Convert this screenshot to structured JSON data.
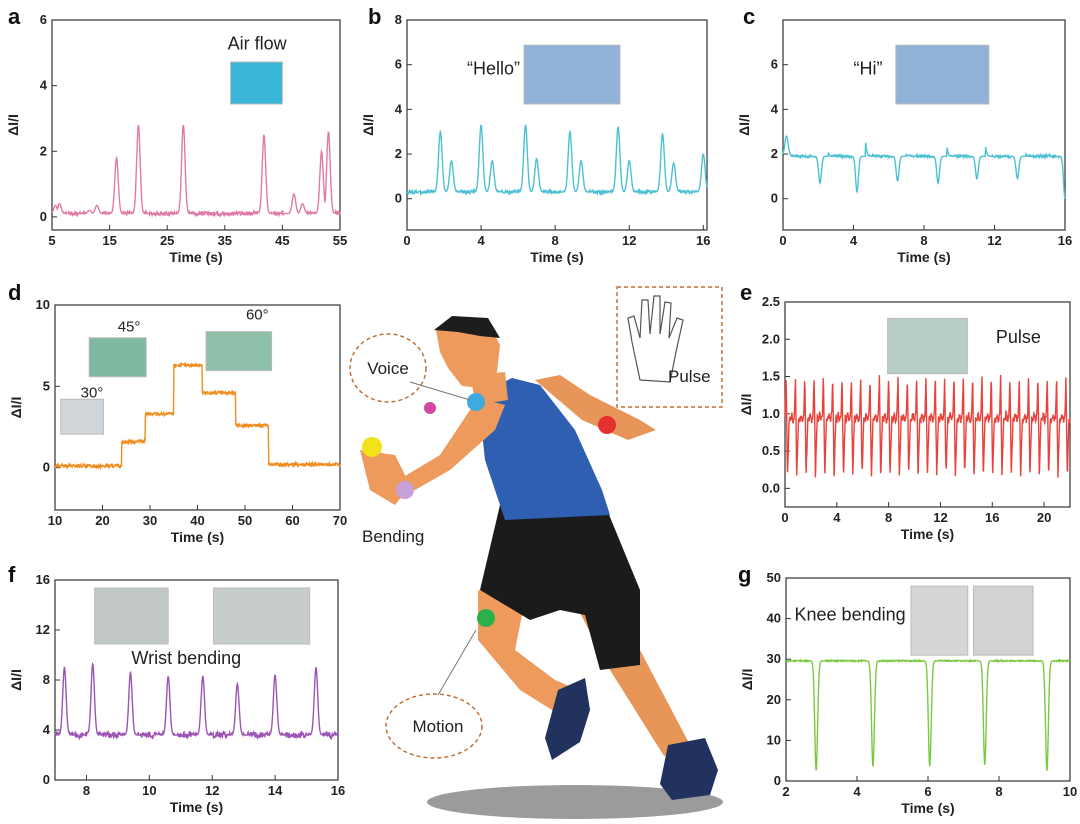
{
  "figure": {
    "center_labels": {
      "voice": "Voice",
      "pulse": "Pulse",
      "bending": "Bending",
      "motion": "Motion"
    }
  },
  "chart_data": [
    {
      "panel": "a",
      "type": "line",
      "color": "#e07aa5",
      "xlabel": "Time (s)",
      "ylabel": "ΔI/I",
      "xlim": [
        5,
        55
      ],
      "ylim": [
        -0.4,
        6
      ],
      "xticks": [
        5,
        15,
        25,
        35,
        45,
        55
      ],
      "yticks": [
        0,
        2,
        4,
        6
      ],
      "annotations": [
        "Air flow"
      ],
      "peaks": [
        [
          5.6,
          0.35
        ],
        [
          6.3,
          0.4
        ],
        [
          11.5,
          0.2
        ],
        [
          12.8,
          0.35
        ],
        [
          16.2,
          1.8
        ],
        [
          20.0,
          2.8
        ],
        [
          27.8,
          2.8
        ],
        [
          41.8,
          2.5
        ],
        [
          47.0,
          0.7
        ],
        [
          48.5,
          0.4
        ],
        [
          51.8,
          2.0
        ],
        [
          53.0,
          2.6
        ]
      ],
      "baseline": 0.1,
      "noise": 0.06
    },
    {
      "panel": "b",
      "type": "line",
      "color": "#4dc0d3",
      "xlabel": "Time (s)",
      "ylabel": "ΔI/I",
      "xlim": [
        0,
        16.2
      ],
      "ylim": [
        -1.4,
        8
      ],
      "xticks": [
        0,
        4,
        8,
        12,
        16
      ],
      "yticks": [
        0,
        2,
        4,
        6,
        8
      ],
      "annotations": [
        "“Hello”"
      ],
      "peaks": [
        [
          1.8,
          3.0
        ],
        [
          2.4,
          1.7
        ],
        [
          4.0,
          3.3
        ],
        [
          4.6,
          1.7
        ],
        [
          6.4,
          3.3
        ],
        [
          7.0,
          1.8
        ],
        [
          8.8,
          3.0
        ],
        [
          9.4,
          1.7
        ],
        [
          11.4,
          3.2
        ],
        [
          12.0,
          1.7
        ],
        [
          13.8,
          2.9
        ],
        [
          14.4,
          1.6
        ],
        [
          16.0,
          2.0
        ]
      ],
      "baseline": 0.3,
      "noise": 0.08
    },
    {
      "panel": "c",
      "type": "line",
      "color": "#4dc0d3",
      "xlabel": "Time (s)",
      "ylabel": "ΔI/I",
      "xlim": [
        0,
        16
      ],
      "ylim": [
        -1.4,
        8
      ],
      "xticks": [
        0,
        4,
        8,
        12,
        16
      ],
      "yticks": [
        0,
        2,
        4,
        6
      ],
      "annotations": [
        "“Hi”"
      ],
      "peaks": [
        [
          0.2,
          2.8
        ],
        [
          2.4,
          2.9
        ],
        [
          4.6,
          2.8
        ],
        [
          6.8,
          2.5
        ],
        [
          9.2,
          2.6
        ],
        [
          11.4,
          2.6
        ],
        [
          13.6,
          2.5
        ]
      ],
      "dips": [
        [
          2.1,
          0.7
        ],
        [
          4.2,
          0.3
        ],
        [
          6.5,
          0.8
        ],
        [
          8.8,
          0.7
        ],
        [
          11.0,
          0.9
        ],
        [
          13.3,
          0.9
        ],
        [
          16.0,
          0.0
        ]
      ],
      "baseline": 1.9,
      "noise": 0.06
    },
    {
      "panel": "d",
      "type": "line",
      "color": "#f08c1e",
      "xlabel": "Time (s)",
      "ylabel": "ΔI/I",
      "xlim": [
        10,
        70
      ],
      "ylim": [
        -2.6,
        10
      ],
      "xticks": [
        10,
        20,
        30,
        40,
        50,
        60,
        70
      ],
      "yticks": [
        0,
        5,
        10
      ],
      "annotations": [
        "30°",
        "45°",
        "60°"
      ],
      "steps": [
        [
          10,
          0.1
        ],
        [
          24,
          1.6
        ],
        [
          29,
          3.3
        ],
        [
          35,
          6.3
        ],
        [
          41,
          4.6
        ],
        [
          48,
          2.6
        ],
        [
          55,
          0.2
        ],
        [
          70,
          0.2
        ]
      ],
      "noise": 0.1
    },
    {
      "panel": "e",
      "type": "line",
      "color": "#e8423b",
      "xlabel": "Time (s)",
      "ylabel": "ΔI/I",
      "xlim": [
        0,
        22
      ],
      "ylim": [
        -0.25,
        2.5
      ],
      "xticks": [
        0,
        4,
        8,
        12,
        16,
        20
      ],
      "yticks": [
        0.0,
        0.5,
        1.0,
        1.5,
        2.0,
        2.5
      ],
      "annotations": [
        "Pulse"
      ],
      "beat_period_s": 0.72,
      "peak": 1.5,
      "trough": 0.15,
      "baseline": 0.95
    },
    {
      "panel": "f",
      "type": "line",
      "color": "#9c55b4",
      "xlabel": "Time (s)",
      "ylabel": "ΔI/I",
      "xlim": [
        7,
        16
      ],
      "ylim": [
        0,
        16
      ],
      "xticks": [
        8,
        10,
        12,
        14,
        16
      ],
      "yticks": [
        0,
        4,
        8,
        12,
        16
      ],
      "annotations": [
        "Wrist bending"
      ],
      "peaks": [
        [
          7.3,
          9.0
        ],
        [
          8.2,
          9.3
        ],
        [
          9.4,
          8.6
        ],
        [
          10.6,
          8.3
        ],
        [
          11.7,
          8.3
        ],
        [
          12.8,
          7.7
        ],
        [
          14.0,
          8.4
        ],
        [
          15.3,
          9.0
        ]
      ],
      "baseline": 3.6,
      "noise": 0.25
    },
    {
      "panel": "g",
      "type": "line",
      "color": "#7ac943",
      "xlabel": "Time (s)",
      "ylabel": "ΔI/I",
      "xlim": [
        2,
        10
      ],
      "ylim": [
        0,
        50
      ],
      "xticks": [
        2,
        4,
        6,
        8,
        10
      ],
      "yticks": [
        0,
        10,
        20,
        30,
        40,
        50
      ],
      "annotations": [
        "Knee bending"
      ],
      "dips": [
        [
          2.85,
          2.5
        ],
        [
          4.45,
          3.5
        ],
        [
          6.05,
          3.5
        ],
        [
          7.6,
          4.0
        ],
        [
          9.35,
          2.5
        ]
      ],
      "baseline": 29.6,
      "noise": 0.15
    }
  ]
}
